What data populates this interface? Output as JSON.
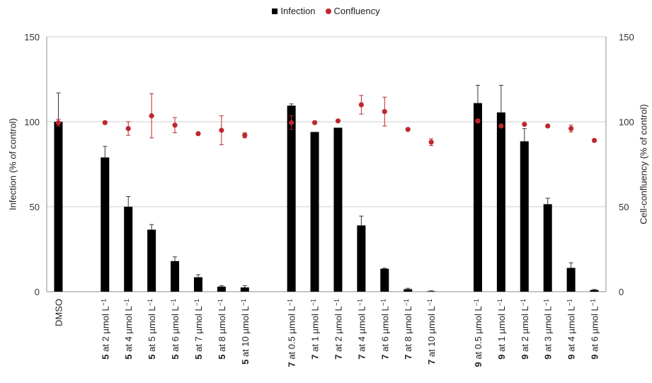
{
  "chart_data": {
    "type": "bar",
    "legend": {
      "position": "top-center",
      "items": [
        {
          "name": "Infection",
          "marker": "square",
          "color": "#000000"
        },
        {
          "name": "Confluency",
          "marker": "circle",
          "color": "#c0272d"
        }
      ]
    },
    "ylabel_left": "Infection (% of control)",
    "ylabel_right": "Cell-confluency (% of control)",
    "ylim": [
      0,
      150
    ],
    "y_ticks": [
      0,
      50,
      100,
      150
    ],
    "grid": true,
    "categories": [
      {
        "bold": "",
        "rest": "DMSO",
        "sup": ""
      },
      {
        "bold": "5",
        "rest": " at 2 µmol L",
        "sup": "−1"
      },
      {
        "bold": "5",
        "rest": " at 4 µmol L",
        "sup": "−1"
      },
      {
        "bold": "5",
        "rest": " at 5 µmol L",
        "sup": "−1"
      },
      {
        "bold": "5",
        "rest": " at 6 µmol L",
        "sup": "−1"
      },
      {
        "bold": "5",
        "rest": " at 7 µmol L",
        "sup": "−1"
      },
      {
        "bold": "5",
        "rest": " at 8 µmol L",
        "sup": "−1"
      },
      {
        "bold": "5",
        "rest": " at 10 µmol L",
        "sup": "−1"
      },
      {
        "bold": "7",
        "rest": " at 0.5 µmol L",
        "sup": "−1"
      },
      {
        "bold": "7",
        "rest": " at 1 µmol L",
        "sup": "−1"
      },
      {
        "bold": "7",
        "rest": " at 2 µmol L",
        "sup": "−1"
      },
      {
        "bold": "7",
        "rest": " at 4 µmol L",
        "sup": "−1"
      },
      {
        "bold": "7",
        "rest": " at 6 µmol L",
        "sup": "−1"
      },
      {
        "bold": "7",
        "rest": " at 8 µmol L",
        "sup": "−1"
      },
      {
        "bold": "7",
        "rest": " at 10 µmol L",
        "sup": "−1"
      },
      {
        "bold": "9",
        "rest": " at 0.5 µmol L",
        "sup": "−1"
      },
      {
        "bold": "9",
        "rest": " at 1 µmol L",
        "sup": "−1"
      },
      {
        "bold": "9",
        "rest": " at 2 µmol L",
        "sup": "−1"
      },
      {
        "bold": "9",
        "rest": " at 3 µmol L",
        "sup": "−1"
      },
      {
        "bold": "9",
        "rest": " at 4 µmol L",
        "sup": "−1"
      },
      {
        "bold": "9",
        "rest": " at 6 µmol L",
        "sup": "−1"
      }
    ],
    "slot_index": [
      0,
      2,
      3,
      4,
      5,
      6,
      7,
      8,
      10,
      11,
      12,
      13,
      14,
      15,
      16,
      18,
      19,
      20,
      21,
      22,
      23
    ],
    "series": [
      {
        "name": "Infection",
        "type": "bar",
        "color": "#000000",
        "values": [
          100,
          79,
          50,
          36.5,
          18,
          8.5,
          3,
          2.5,
          109.5,
          94,
          96.5,
          39,
          13.5,
          1.5,
          0.3,
          111,
          105.5,
          88.5,
          51.5,
          14,
          1
        ],
        "errors": [
          17,
          6.5,
          6,
          3,
          2.5,
          1.5,
          0.5,
          1,
          1,
          0,
          0,
          5.5,
          0.3,
          0.5,
          0.2,
          10.5,
          16,
          7.5,
          3.5,
          3,
          0.3
        ]
      },
      {
        "name": "Confluency",
        "type": "scatter",
        "color": "#c0272d",
        "values": [
          99.5,
          99.5,
          96,
          103.5,
          98,
          93,
          95,
          92,
          99.5,
          99.5,
          100.5,
          110,
          106,
          95.5,
          88,
          100.5,
          97.5,
          98.5,
          97.5,
          96,
          89
        ],
        "errors": [
          2,
          0,
          4,
          13,
          4.5,
          0,
          8.5,
          1.5,
          4,
          0,
          0,
          5.5,
          8.5,
          0,
          2,
          1,
          0,
          0,
          0,
          2,
          0
        ]
      }
    ]
  }
}
